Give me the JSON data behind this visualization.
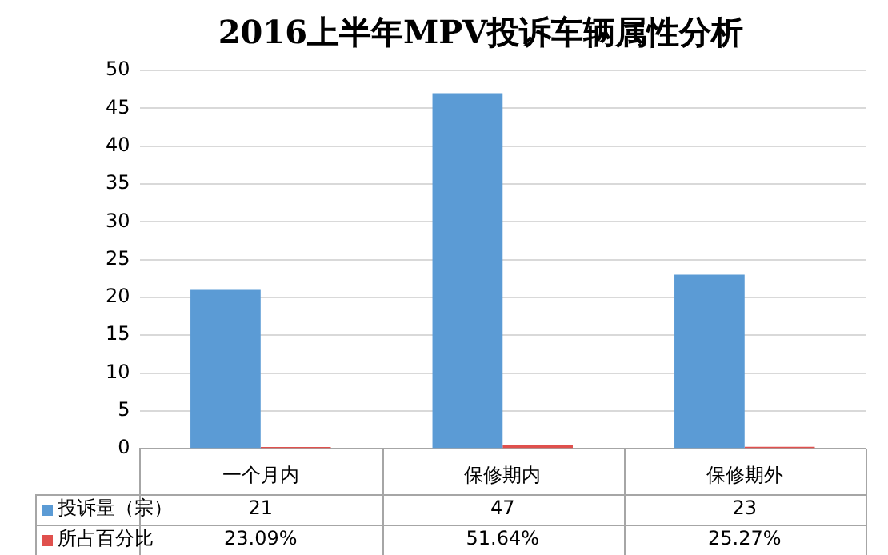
{
  "chart_data": {
    "type": "bar",
    "title": "2016上半年MPV投诉车辆属性分析",
    "categories": [
      "一个月内",
      "保修期内",
      "保修期外"
    ],
    "series": [
      {
        "name": "投诉量（宗）",
        "color": "#5b9bd5",
        "values": [
          21,
          47,
          23
        ],
        "value_labels": [
          "21",
          "47",
          "23"
        ]
      },
      {
        "name": "所占百分比",
        "color": "#e0504d",
        "values": [
          0.2309,
          0.5164,
          0.2527
        ],
        "value_labels": [
          "23.09%",
          "51.64%",
          "25.27%"
        ]
      }
    ],
    "ylim": [
      0,
      50
    ],
    "yticks": [
      0,
      5,
      10,
      15,
      20,
      25,
      30,
      35,
      40,
      45,
      50
    ],
    "grid": "y",
    "legend": "bottom"
  }
}
